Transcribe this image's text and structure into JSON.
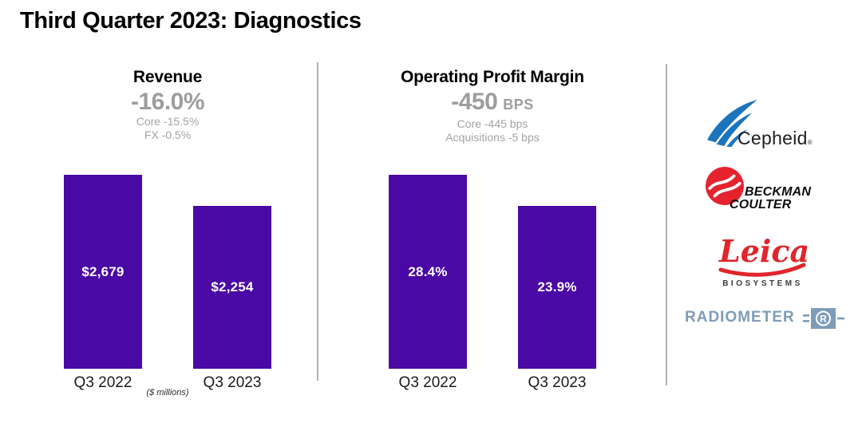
{
  "page_title": "Third Quarter 2023: Diagnostics",
  "colors": {
    "bar_purple": "#4A08A5",
    "headline_gray": "#9D9D9D",
    "subline_gray": "#A3A3A3",
    "divider_gray": "#B3B3B3",
    "cepheid_blue": "#1B75BC",
    "cepheid_text": "#1E1E1E",
    "beckman_red": "#E5232E",
    "beckman_text": "#0D0D0D",
    "leica_red": "#E0262C",
    "leica_sub_text": "#3B3B3B",
    "radiometer_blue": "#7E9CB9"
  },
  "chart_data": [
    {
      "type": "bar",
      "title": "Revenue",
      "headline": "-16.0%",
      "headline_unit": "",
      "breakdown": [
        "Core -15.5%",
        "FX -0.5%"
      ],
      "categories": [
        "Q3 2022",
        "Q3 2023"
      ],
      "values": [
        2679,
        2254
      ],
      "value_labels": [
        "$2,679",
        "$2,254"
      ],
      "unit_note": "($ millions)",
      "xlabel": "",
      "ylabel": "",
      "ylim": [
        0,
        2679
      ],
      "grid": false,
      "legend": false
    },
    {
      "type": "bar",
      "title": "Operating Profit Margin",
      "headline": "-450",
      "headline_unit": "BPS",
      "breakdown": [
        "Core -445 bps",
        "Acquisitions -5 bps"
      ],
      "categories": [
        "Q3 2022",
        "Q3 2023"
      ],
      "values": [
        28.4,
        23.9
      ],
      "value_labels": [
        "28.4%",
        "23.9%"
      ],
      "unit_note": "",
      "xlabel": "",
      "ylabel": "",
      "ylim": [
        0,
        28.4
      ],
      "grid": false,
      "legend": false
    }
  ],
  "logos": {
    "cepheid": {
      "text": "Cepheid",
      "reg": "®"
    },
    "beckman": {
      "line1": "BECKMAN",
      "line2": "COULTER"
    },
    "leica": {
      "script": "Leica",
      "sub": "BIOSYSTEMS"
    },
    "radiometer": {
      "text": "RADIOMETER",
      "icon_letter": "R"
    }
  }
}
